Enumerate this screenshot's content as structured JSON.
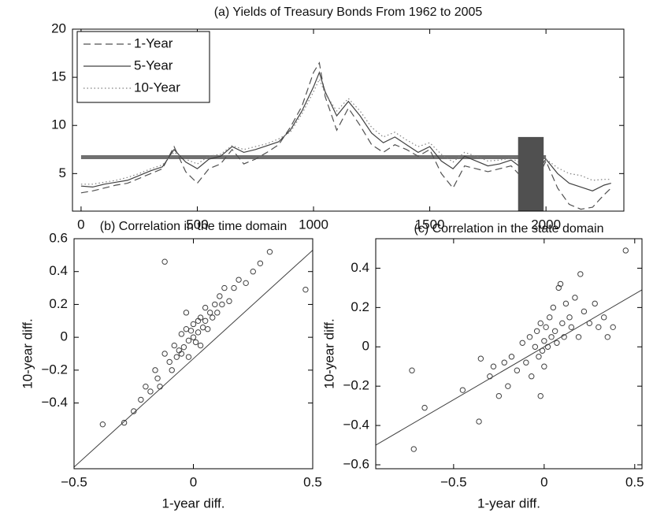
{
  "chart_data": [
    {
      "type": "line",
      "title": "(a) Yields of Treasury Bonds From 1962 to 2005",
      "x": [
        0,
        50,
        100,
        150,
        200,
        250,
        300,
        350,
        400,
        450,
        500,
        550,
        600,
        650,
        700,
        750,
        800,
        850,
        900,
        950,
        1000,
        1025,
        1050,
        1100,
        1150,
        1200,
        1250,
        1300,
        1350,
        1400,
        1450,
        1500,
        1550,
        1600,
        1650,
        1700,
        1750,
        1800,
        1850,
        1900,
        1950,
        2000,
        2050,
        2100,
        2150,
        2200,
        2250,
        2280
      ],
      "series": [
        {
          "name": "1-Year",
          "color": "#505050",
          "line_style": "dashed",
          "values": [
            3.0,
            3.2,
            3.5,
            3.8,
            4.0,
            4.5,
            5.0,
            5.5,
            7.8,
            5.2,
            4.0,
            5.5,
            6.0,
            7.5,
            6.0,
            6.5,
            7.2,
            8.0,
            9.8,
            12.0,
            15.5,
            16.5,
            13.0,
            9.5,
            11.8,
            10.0,
            8.0,
            7.2,
            8.0,
            7.5,
            6.8,
            7.5,
            5.0,
            3.5,
            5.8,
            5.5,
            5.2,
            5.5,
            5.8,
            4.5,
            3.8,
            6.3,
            3.5,
            1.8,
            1.3,
            1.5,
            2.8,
            3.5
          ]
        },
        {
          "name": "5-Year",
          "color": "#404040",
          "line_style": "solid",
          "values": [
            3.7,
            3.6,
            3.9,
            4.1,
            4.3,
            4.8,
            5.3,
            5.7,
            7.5,
            6.2,
            5.5,
            6.5,
            6.8,
            7.8,
            7.2,
            7.5,
            7.9,
            8.3,
            9.5,
            11.5,
            14,
            15.5,
            13.5,
            11,
            12.5,
            11,
            9.2,
            8.2,
            8.8,
            8.0,
            7.2,
            7.8,
            6.3,
            5.5,
            6.8,
            6.3,
            5.8,
            6.0,
            6.4,
            5.5,
            4.8,
            6.5,
            5.0,
            4.0,
            3.6,
            3.2,
            3.8,
            4.0
          ]
        },
        {
          "name": "10-Year",
          "color": "#808080",
          "line_style": "dotted",
          "values": [
            3.9,
            3.9,
            4.1,
            4.3,
            4.6,
            5.0,
            5.5,
            5.9,
            7.2,
            6.5,
            6.0,
            6.8,
            7.0,
            7.9,
            7.5,
            7.8,
            8.1,
            8.6,
            9.3,
            11.2,
            13.5,
            14.8,
            13.3,
            11.5,
            12.8,
            11.5,
            9.8,
            8.8,
            9.3,
            8.5,
            7.8,
            8.2,
            7.0,
            6.2,
            7.2,
            6.8,
            6.3,
            6.4,
            6.6,
            6.0,
            5.3,
            6.5,
            5.6,
            5.0,
            4.8,
            4.3,
            4.4,
            4.4
          ]
        }
      ],
      "reference_line": {
        "y": 6.7,
        "x": [
          0,
          2000
        ],
        "color": "#707070"
      },
      "shaded_region": {
        "x": [
          1880,
          1990
        ],
        "top": 8.8,
        "color": "#505050"
      },
      "xlim": [
        -37,
        2335
      ],
      "xticks": [
        0,
        500,
        1000,
        1500,
        2000
      ],
      "ylim": [
        1.1,
        20
      ],
      "yticks": [
        5,
        10,
        15,
        20
      ],
      "legend": "upper left"
    },
    {
      "type": "scatter",
      "title": "(b) Correlation in the time domain",
      "x_label": "1-year diff.",
      "y_label": "10-year diff.",
      "color": "#404040",
      "x": [
        -0.38,
        -0.29,
        -0.25,
        -0.22,
        -0.2,
        -0.18,
        -0.16,
        -0.15,
        -0.12,
        -0.12,
        -0.1,
        -0.09,
        -0.08,
        -0.07,
        -0.06,
        -0.05,
        -0.05,
        -0.04,
        -0.03,
        -0.02,
        -0.02,
        -0.01,
        0,
        0,
        0.01,
        0.02,
        0.02,
        0.03,
        0.04,
        0.05,
        0.05,
        0.06,
        0.07,
        0.08,
        0.09,
        0.1,
        0.11,
        0.12,
        0.13,
        0.15,
        0.17,
        0.19,
        0.22,
        0.25,
        0.28,
        0.32,
        0.47,
        -0.14,
        0.03,
        -0.03
      ],
      "values": [
        -0.53,
        -0.52,
        -0.45,
        -0.38,
        -0.3,
        -0.33,
        -0.2,
        -0.25,
        0.46,
        -0.1,
        -0.15,
        -0.2,
        -0.05,
        -0.12,
        -0.08,
        0.02,
        -0.1,
        -0.06,
        0.05,
        -0.02,
        -0.12,
        0.04,
        0,
        0.08,
        -0.03,
        0.1,
        0.03,
        0.12,
        0.06,
        0.18,
        0.1,
        0.05,
        0.15,
        0.12,
        0.2,
        0.15,
        0.25,
        0.2,
        0.3,
        0.22,
        0.3,
        0.35,
        0.33,
        0.4,
        0.45,
        0.52,
        0.29,
        -0.3,
        -0.05,
        0.15
      ],
      "fit_line": {
        "x": [
          -0.5,
          0.5
        ],
        "y": [
          -0.79,
          0.53
        ]
      },
      "xlim": [
        -0.5,
        0.5
      ],
      "xticks": [
        {
          "value": -0.5,
          "label": "−0.5"
        },
        0,
        0.5
      ],
      "ylim": [
        -0.8,
        0.6
      ],
      "yticks": [
        {
          "value": -0.4,
          "label": "−0.4"
        },
        {
          "value": -0.2,
          "label": "−0.2"
        },
        0,
        0.2,
        0.4,
        0.6
      ]
    },
    {
      "type": "scatter",
      "title": "(c) Correlation in the state domain",
      "x_label": "1-year diff.",
      "y_label": "10-year diff.",
      "color": "#404040",
      "x": [
        -0.73,
        -0.72,
        -0.66,
        -0.45,
        -0.36,
        -0.35,
        -0.3,
        -0.28,
        -0.25,
        -0.22,
        -0.2,
        -0.18,
        -0.15,
        -0.12,
        -0.1,
        -0.08,
        -0.07,
        -0.05,
        -0.04,
        -0.03,
        -0.02,
        -0.01,
        0,
        0,
        0.01,
        0.02,
        0.03,
        0.04,
        0.05,
        0.06,
        0.07,
        0.08,
        0.1,
        0.11,
        0.12,
        0.14,
        0.15,
        0.17,
        0.19,
        0.2,
        0.22,
        0.25,
        0.28,
        0.3,
        0.33,
        0.35,
        0.38,
        0.45,
        -0.02,
        0.09
      ],
      "values": [
        -0.12,
        -0.52,
        -0.31,
        -0.22,
        -0.38,
        -0.06,
        -0.15,
        -0.1,
        -0.25,
        -0.08,
        -0.2,
        -0.05,
        -0.12,
        0.02,
        -0.08,
        0.05,
        -0.15,
        0,
        0.08,
        -0.05,
        0.12,
        -0.02,
        0.03,
        -0.1,
        0.1,
        0,
        0.15,
        0.05,
        0.2,
        0.08,
        0.02,
        0.3,
        0.12,
        0.05,
        0.22,
        0.15,
        0.1,
        0.25,
        0.05,
        0.37,
        0.18,
        0.12,
        0.22,
        0.1,
        0.15,
        0.05,
        0.1,
        0.49,
        -0.25,
        0.32
      ],
      "fit_line": {
        "x": [
          -0.93,
          0.54
        ],
        "y": [
          -0.5,
          0.29
        ]
      },
      "xlim": [
        -0.93,
        0.54
      ],
      "xticks": [
        {
          "value": -0.5,
          "label": "−0.5"
        },
        0,
        0.5
      ],
      "ylim": [
        -0.62,
        0.55
      ],
      "yticks": [
        {
          "value": -0.6,
          "label": "−0.6"
        },
        {
          "value": -0.4,
          "label": "−0.4"
        },
        {
          "value": -0.2,
          "label": "−0.2"
        },
        0,
        0.2,
        0.4
      ]
    }
  ]
}
